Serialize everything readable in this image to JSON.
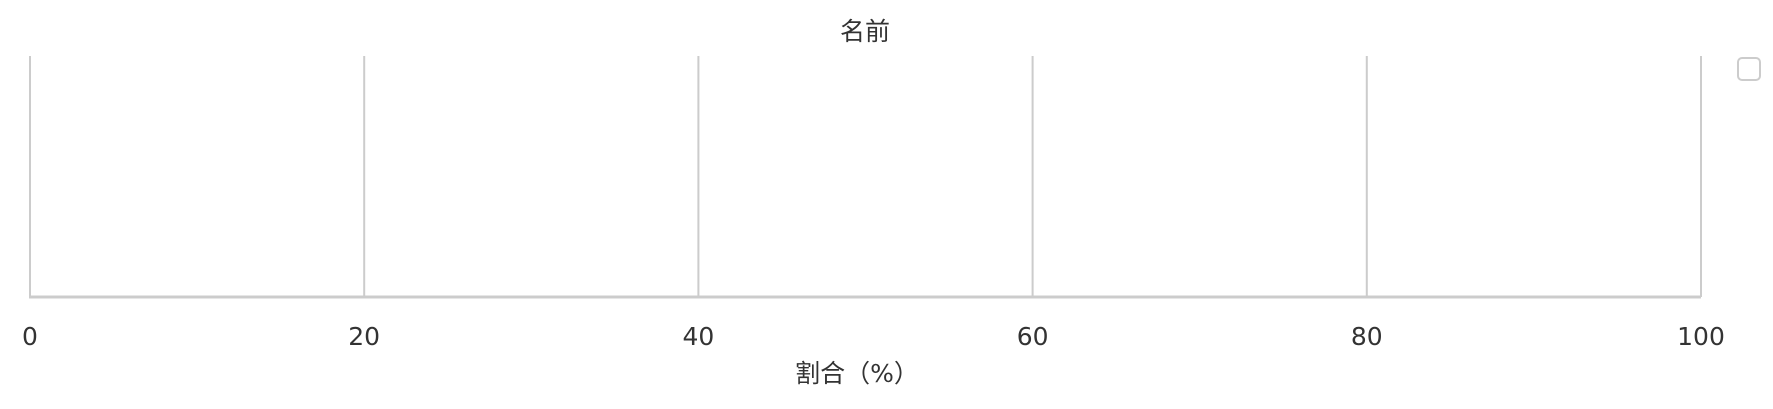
{
  "chart_data": {
    "type": "bar",
    "orientation": "horizontal",
    "title": "名前",
    "xlabel": "割合（%）",
    "ylabel": "",
    "xlim": [
      0,
      100
    ],
    "x_ticks": [
      0,
      20,
      40,
      60,
      80,
      100
    ],
    "x_tick_labels": [
      "0",
      "20",
      "40",
      "60",
      "80",
      "100"
    ],
    "categories": [],
    "series": [],
    "grid": "vertical",
    "legend_position": "top-right",
    "colors": {
      "grid": "#cccccc",
      "axis": "#cccccc",
      "text": "#333333",
      "background": "#ffffff"
    }
  }
}
